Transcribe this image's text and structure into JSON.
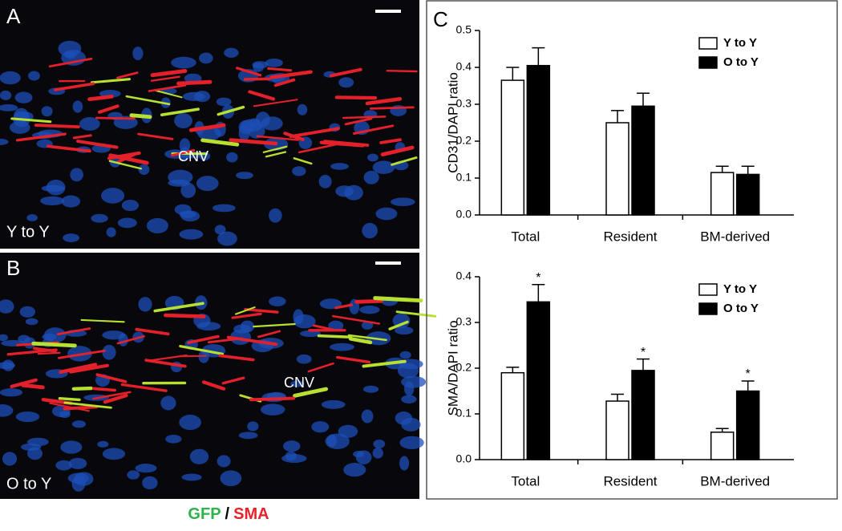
{
  "panels": {
    "a": {
      "letter": "A",
      "group": "Y to Y",
      "region": "CNV"
    },
    "b": {
      "letter": "B",
      "group": "O to Y",
      "region": "CNV"
    },
    "c": {
      "letter": "C"
    },
    "stain": {
      "green": "GFP",
      "sep": "/",
      "red": "SMA"
    }
  },
  "chart_data": [
    {
      "type": "bar",
      "ylabel": "CD31/DAPI ratio",
      "categories": [
        "Total",
        "Resident",
        "BM-derived"
      ],
      "series": [
        {
          "name": "Y to Y",
          "color": "#ffffff",
          "values": [
            0.365,
            0.25,
            0.115
          ],
          "errors": [
            0.035,
            0.033,
            0.017
          ]
        },
        {
          "name": "O to Y",
          "color": "#000000",
          "values": [
            0.405,
            0.295,
            0.11
          ],
          "errors": [
            0.048,
            0.035,
            0.022
          ]
        }
      ],
      "ylim": [
        0,
        0.5
      ],
      "yticks": [
        {
          "value": 0,
          "label": "0.0"
        },
        0.1,
        0.2,
        0.3,
        0.4,
        0.5
      ],
      "legend": "upper right"
    },
    {
      "type": "bar",
      "ylabel": "SMA/DAPI ratio",
      "categories": [
        "Total",
        "Resident",
        "BM-derived"
      ],
      "series": [
        {
          "name": "Y to Y",
          "color": "#ffffff",
          "values": [
            0.19,
            0.128,
            0.06
          ],
          "errors": [
            0.012,
            0.015,
            0.008
          ]
        },
        {
          "name": "O to Y",
          "color": "#000000",
          "values": [
            0.345,
            0.195,
            0.15
          ],
          "errors": [
            0.038,
            0.025,
            0.022
          ],
          "significance": [
            "*",
            "*",
            "*"
          ]
        }
      ],
      "ylim": [
        0,
        0.4
      ],
      "yticks": [
        {
          "value": 0,
          "label": "0.0"
        },
        0.1,
        0.2,
        0.3,
        0.4
      ],
      "legend": "upper right"
    }
  ]
}
